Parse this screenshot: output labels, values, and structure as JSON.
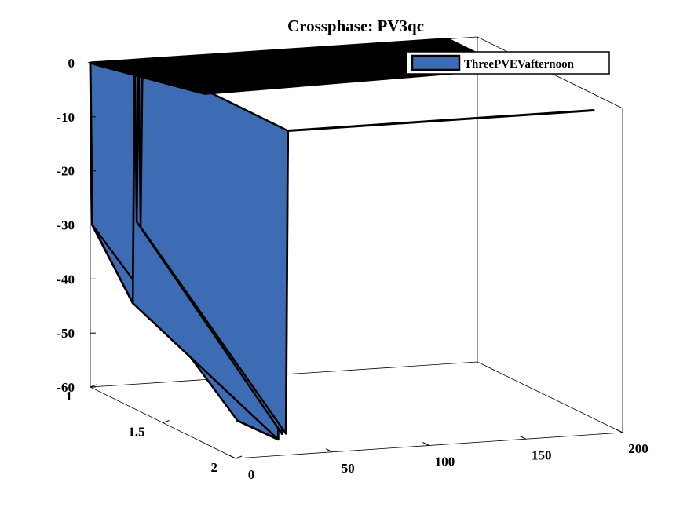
{
  "chart_data": {
    "type": "area",
    "variant": "3d-surface-walls",
    "title": "Crossphase: PV3qc",
    "xlabel": "",
    "ylabel": "",
    "zlabel": "",
    "x_ticks": [
      "0",
      "50",
      "100",
      "150",
      "200"
    ],
    "y_ticks": [
      "1",
      "1.5",
      "2"
    ],
    "z_ticks": [
      "0",
      "-10",
      "-20",
      "-30",
      "-40",
      "-50",
      "-60"
    ],
    "xlim": [
      0,
      200
    ],
    "ylim": [
      1,
      2
    ],
    "zlim": [
      -60,
      0
    ],
    "legend": {
      "placement": "top-right",
      "entries": [
        "ThreePVEVafternoon"
      ]
    },
    "colors": {
      "face": "#3d6cb5",
      "edge": "#000000",
      "top_face": "#000000"
    },
    "series": [
      {
        "name": "ThreePVEVafternoon",
        "y": 1,
        "points": [
          {
            "x": 0,
            "z": 0
          },
          {
            "x": 1,
            "z": -30
          },
          {
            "x": 22,
            "z": -45
          },
          {
            "x": 23,
            "z": 0
          },
          {
            "x": 24,
            "z": -30
          },
          {
            "x": 25,
            "z": 0
          },
          {
            "x": 26,
            "z": -31
          },
          {
            "x": 27,
            "z": 0
          },
          {
            "x": 185,
            "z": 0
          }
        ]
      },
      {
        "name": "ThreePVEVafternoon",
        "y": 2,
        "points": [
          {
            "x": 0,
            "z": 0
          },
          {
            "x": 1,
            "z": -53
          },
          {
            "x": 22,
            "z": -57
          },
          {
            "x": 23,
            "z": 0
          },
          {
            "x": 24,
            "z": -56
          },
          {
            "x": 25,
            "z": 0
          },
          {
            "x": 26,
            "z": -56
          },
          {
            "x": 27,
            "z": 0
          },
          {
            "x": 185,
            "z": 0
          }
        ]
      }
    ]
  }
}
